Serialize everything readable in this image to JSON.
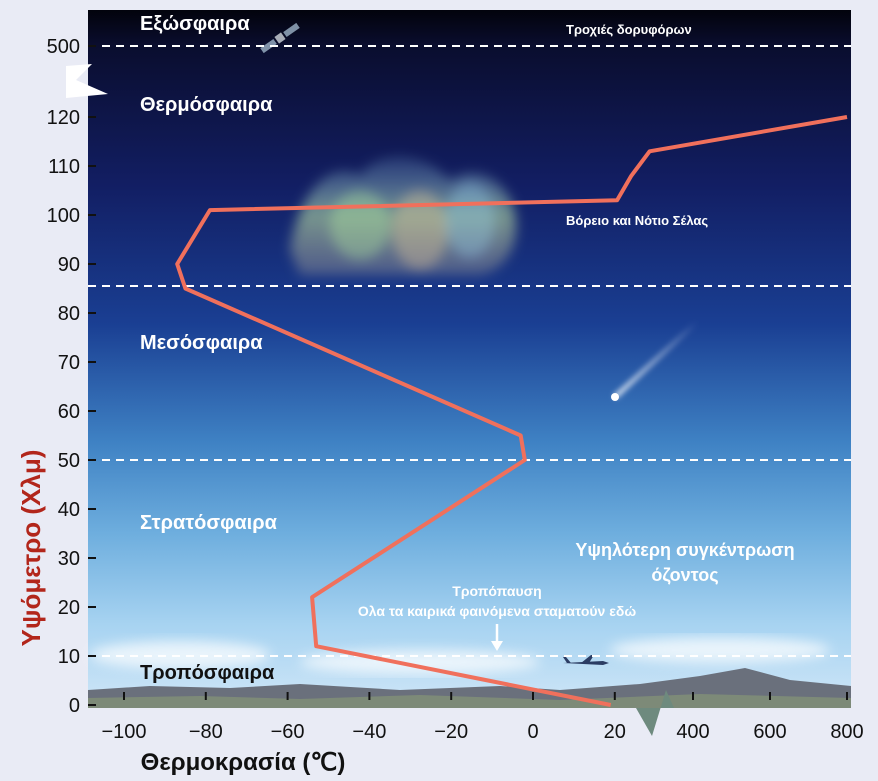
{
  "chart_data": {
    "type": "line",
    "xlabel": "Θερμοκρασία (℃)",
    "ylabel": "Υψόμετρο (Χλμ)",
    "x_ticks": [
      "−100",
      "−80",
      "−60",
      "−40",
      "−20",
      "0",
      "20",
      "400",
      "600",
      "800"
    ],
    "y_ticks": [
      "0",
      "10",
      "20",
      "30",
      "40",
      "50",
      "60",
      "70",
      "80",
      "90",
      "100",
      "110",
      "120",
      "500"
    ],
    "series": [
      {
        "x": [
          19,
          -11,
          -53,
          -54,
          -2,
          -3,
          -85,
          -87,
          -79,
          40,
          175,
          350,
          800
        ],
        "y": [
          0,
          5,
          12,
          22,
          50,
          55,
          85,
          90,
          101,
          103,
          108,
          113,
          120
        ]
      }
    ]
  },
  "layers": {
    "exosphere": "Εξώσφαιρα",
    "thermosphere": "Θερμόσφαιρα",
    "mesosphere": "Μεσόσφαιρα",
    "stratosphere": "Στρατόσφαιρα",
    "troposphere": "Τροπόσφαιρα"
  },
  "annotations": {
    "satellite_orbits": "Τροχιές δορυφόρων",
    "aurora": "Βόρειο και Νότιο Σέλας",
    "ozone_line1": "Υψηλότερη συγκέντρωση",
    "ozone_line2": "όζοντος",
    "tropopause_title": "Τροπόπαυση",
    "tropopause_note": "Ολα τα καιρικά φαινόμενα σταματούν εδώ"
  },
  "colors": {
    "curve": "#f0705c",
    "ylabel": "#b2261b",
    "dashed_lines": "#ffffff"
  }
}
